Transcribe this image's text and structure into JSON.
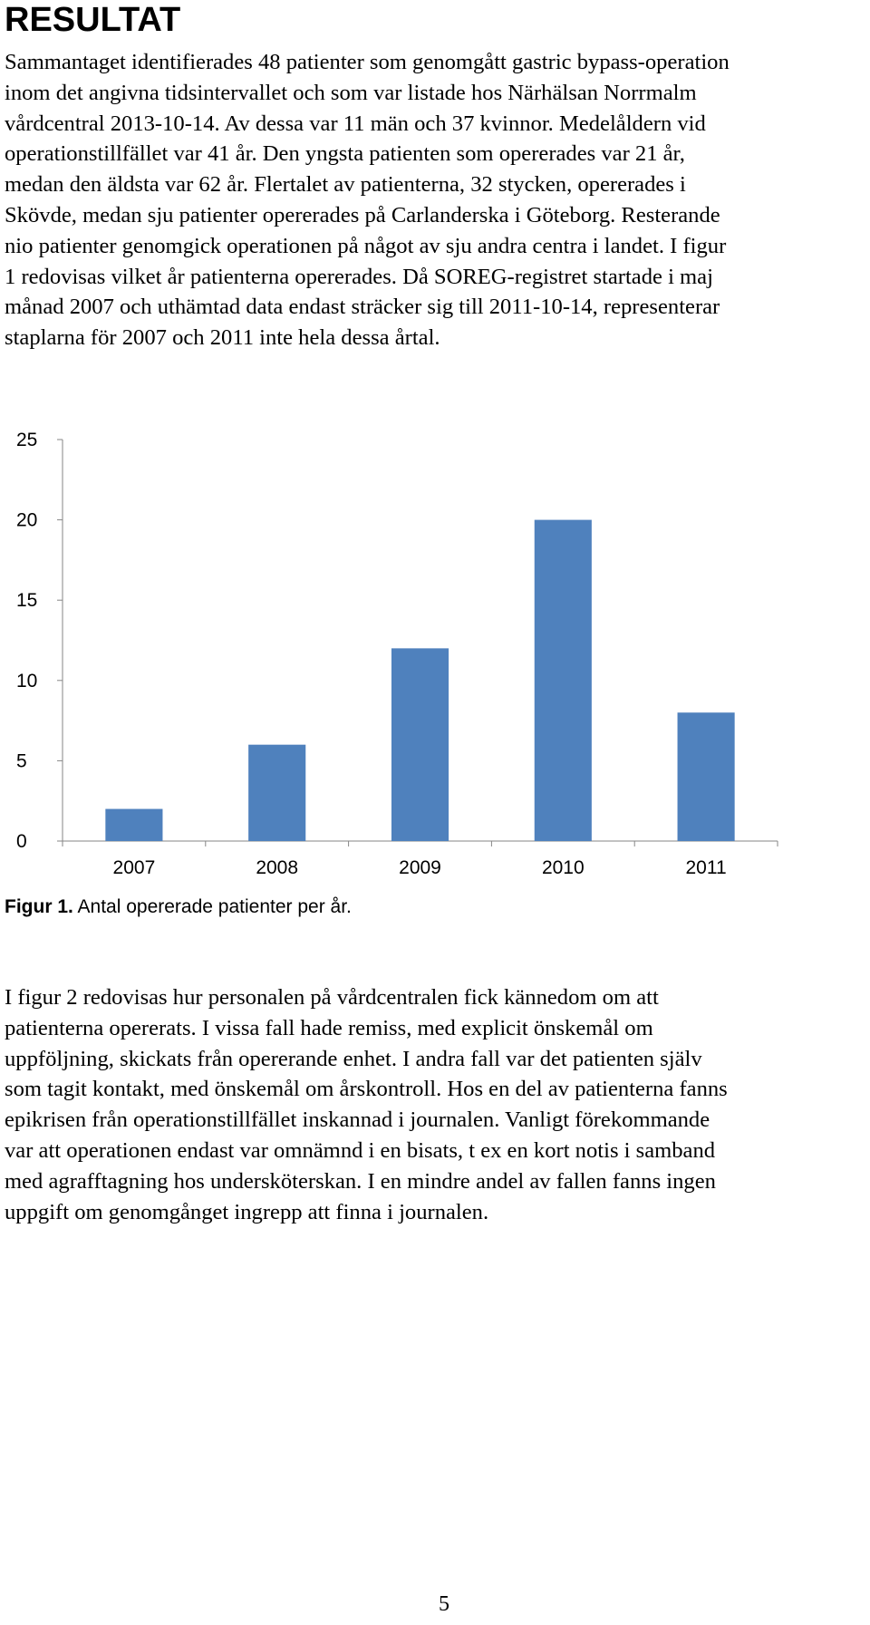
{
  "heading": "RESULTAT",
  "paragraph_1": [
    "Sammantaget identifierades 48 patienter som genomgått gastric bypass-operation",
    "inom det angivna tidsintervallet och som var listade hos Närhälsan Norrmalm",
    "vårdcentral 2013-10-14. Av dessa var 11 män och 37 kvinnor. Medelåldern vid",
    "operationstillfället var 41 år. Den yngsta patienten som opererades var 21 år,",
    "medan den äldsta var 62 år. Flertalet av patienterna, 32 stycken, opererades i",
    "Skövde, medan sju patienter opererades på Carlanderska i Göteborg. Resterande",
    "nio patienter genomgick operationen på något av sju andra centra i landet. I figur",
    "1 redovisas vilket år patienterna opererades. Då SOREG-registret startade i maj",
    "månad 2007 och uthämtad data endast sträcker sig till 2011-10-14, representerar",
    "staplarna för 2007 och 2011 inte hela dessa årtal."
  ],
  "chart_data": {
    "type": "bar",
    "title": "",
    "xlabel": "",
    "ylabel": "",
    "categories": [
      "2007",
      "2008",
      "2009",
      "2010",
      "2011"
    ],
    "values": [
      2,
      6,
      12,
      20,
      8
    ],
    "ylim": [
      0,
      25
    ],
    "yticks": [
      0,
      5,
      10,
      15,
      20,
      25
    ],
    "grid": false,
    "legend": "none",
    "bar_color": "#4F81BD"
  },
  "figure_caption": {
    "label": "Figur 1.",
    "text": " Antal opererade patienter per år."
  },
  "paragraph_2": [
    "I figur 2 redovisas hur personalen på vårdcentralen fick kännedom om att",
    "patienterna opererats. I vissa fall hade remiss, med explicit önskemål om",
    "uppföljning, skickats från opererande enhet. I andra fall var det patienten själv",
    "som tagit kontakt, med önskemål om årskontroll. Hos en del av patienterna fanns",
    "epikrisen från operationstillfället inskannad i journalen. Vanligt förekommande",
    "var att operationen endast var omnämnd i en bisats, t ex en kort notis i samband",
    "med agrafftagning hos undersköterskan. I en mindre andel av fallen fanns ingen",
    "uppgift om genomgånget ingrepp att finna i journalen."
  ],
  "page_number": "5"
}
